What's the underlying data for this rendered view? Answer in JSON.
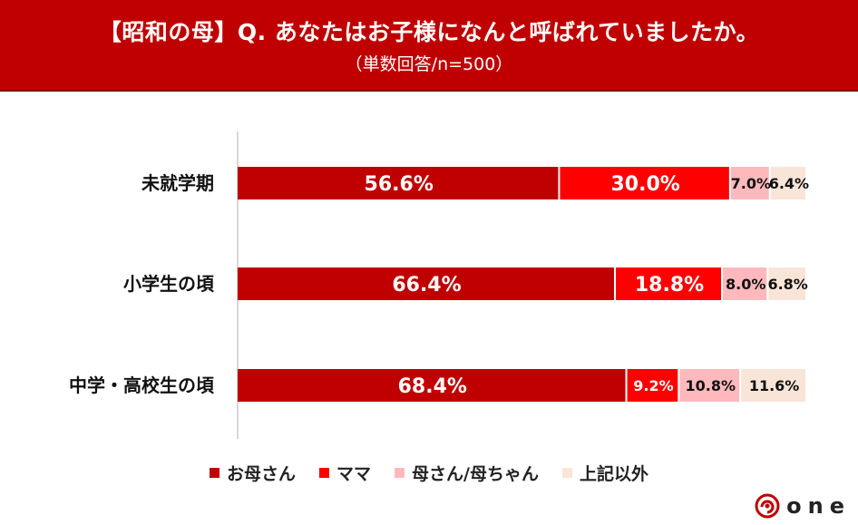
{
  "header": {
    "title": "【昭和の母】Q. あなたはお子様になんと呼ばれていましたか。",
    "subtitle": "（単数回答/n=500）"
  },
  "chart_data": {
    "type": "bar",
    "orientation": "horizontal",
    "stacked": true,
    "percent_scale": true,
    "categories": [
      "未就学期",
      "小学生の頃",
      "中学・高校生の頃"
    ],
    "series": [
      {
        "name": "お母さん",
        "color": "#c00000",
        "values": [
          56.6,
          66.4,
          68.4
        ],
        "labels": [
          "56.6%",
          "66.4%",
          "68.4%"
        ]
      },
      {
        "name": "ママ",
        "color": "#ff0000",
        "values": [
          30.0,
          18.8,
          9.2
        ],
        "labels": [
          "30.0%",
          "18.8%",
          "9.2%"
        ]
      },
      {
        "name": "母さん/母ちゃん",
        "color": "#ffb9bd",
        "values": [
          7.0,
          8.0,
          10.8
        ],
        "labels": [
          "7.0%",
          "8.0%",
          "10.8%"
        ]
      },
      {
        "name": "上記以外",
        "color": "#f9e5d8",
        "values": [
          6.4,
          6.8,
          11.6
        ],
        "labels": [
          "6.4%",
          "6.8%",
          "11.6%"
        ]
      }
    ],
    "legend_position": "bottom",
    "grid": false
  },
  "logo": {
    "text": "one"
  }
}
